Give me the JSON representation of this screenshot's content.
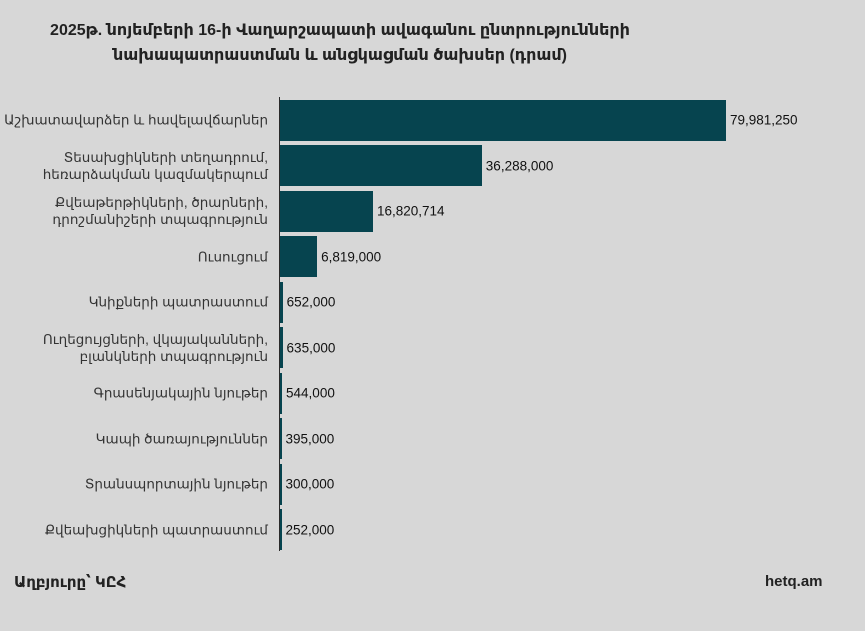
{
  "chart_data": {
    "type": "bar",
    "orientation": "horizontal",
    "title_lines": [
      "2025թ. նոյեմբերի 16-ի Վաղարշապատի ավագանու ընտրությունների",
      "նախապատրաստման և անցկացման ծախսեր (դրամ)"
    ],
    "categories": [
      [
        "Աշխատավարձեր և հավելավճարներ"
      ],
      [
        "Տեսախցիկների տեղադրում,",
        "հեռարձակման կազմակերպում"
      ],
      [
        "Քվեաթերթիկների, ծրարների,",
        "դրոշմանիշերի տպագրություն"
      ],
      [
        "Ուսուցում"
      ],
      [
        "Կնիքների պատրաստում"
      ],
      [
        "Ուղեցույցների, վկայականների,",
        "բլանկների տպագրություն"
      ],
      [
        "Գրասենյակային նյութեր"
      ],
      [
        "Կապի ծառայություններ"
      ],
      [
        "Տրանսպորտային նյութեր"
      ],
      [
        "Քվեախցիկների պատրաստում"
      ]
    ],
    "values": [
      79981250,
      36288000,
      16820714,
      6819000,
      652000,
      635000,
      544000,
      395000,
      300000,
      252000
    ],
    "value_labels": [
      "79,981,250",
      "36,288,000",
      "16,820,714",
      "6,819,000",
      "652,000",
      "635,000",
      "544,000",
      "395,000",
      "300,000",
      "252,000"
    ],
    "xlim": [
      0,
      80000000
    ],
    "bar_color": "#06444f",
    "background": "#d7d7d7"
  },
  "footer": {
    "source": "Աղբյուրը՝ ԿԸՀ",
    "brand": "hetq.am"
  }
}
